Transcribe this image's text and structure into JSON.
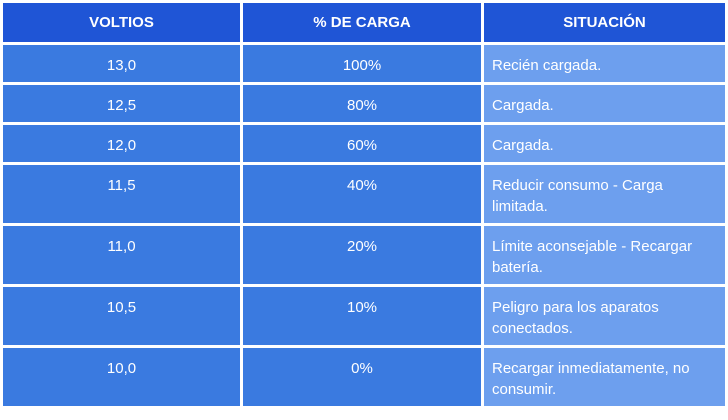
{
  "table": {
    "headers": [
      "VOLTIOS",
      "% DE CARGA",
      "SITUACIÓN"
    ],
    "rows": [
      {
        "voltios": "13,0",
        "carga": "100%",
        "situacion": "Recién cargada."
      },
      {
        "voltios": "12,5",
        "carga": "80%",
        "situacion": "Cargada."
      },
      {
        "voltios": "12,0",
        "carga": "60%",
        "situacion": "Cargada."
      },
      {
        "voltios": "11,5",
        "carga": "40%",
        "situacion": "Reducir consumo - Carga limitada."
      },
      {
        "voltios": "11,0",
        "carga": "20%",
        "situacion": "Límite aconsejable - Recargar batería."
      },
      {
        "voltios": "10,5",
        "carga": "10%",
        "situacion": "Peligro para los aparatos conectados."
      },
      {
        "voltios": "10,0",
        "carga": "0%",
        "situacion": "Recargar inmediatamente, no consumir."
      }
    ]
  },
  "colors": {
    "header_bg": "#1f55d6",
    "cell_bg": "#3a7ae0",
    "situation_bg": "#6d9fee",
    "text": "#ffffff"
  }
}
